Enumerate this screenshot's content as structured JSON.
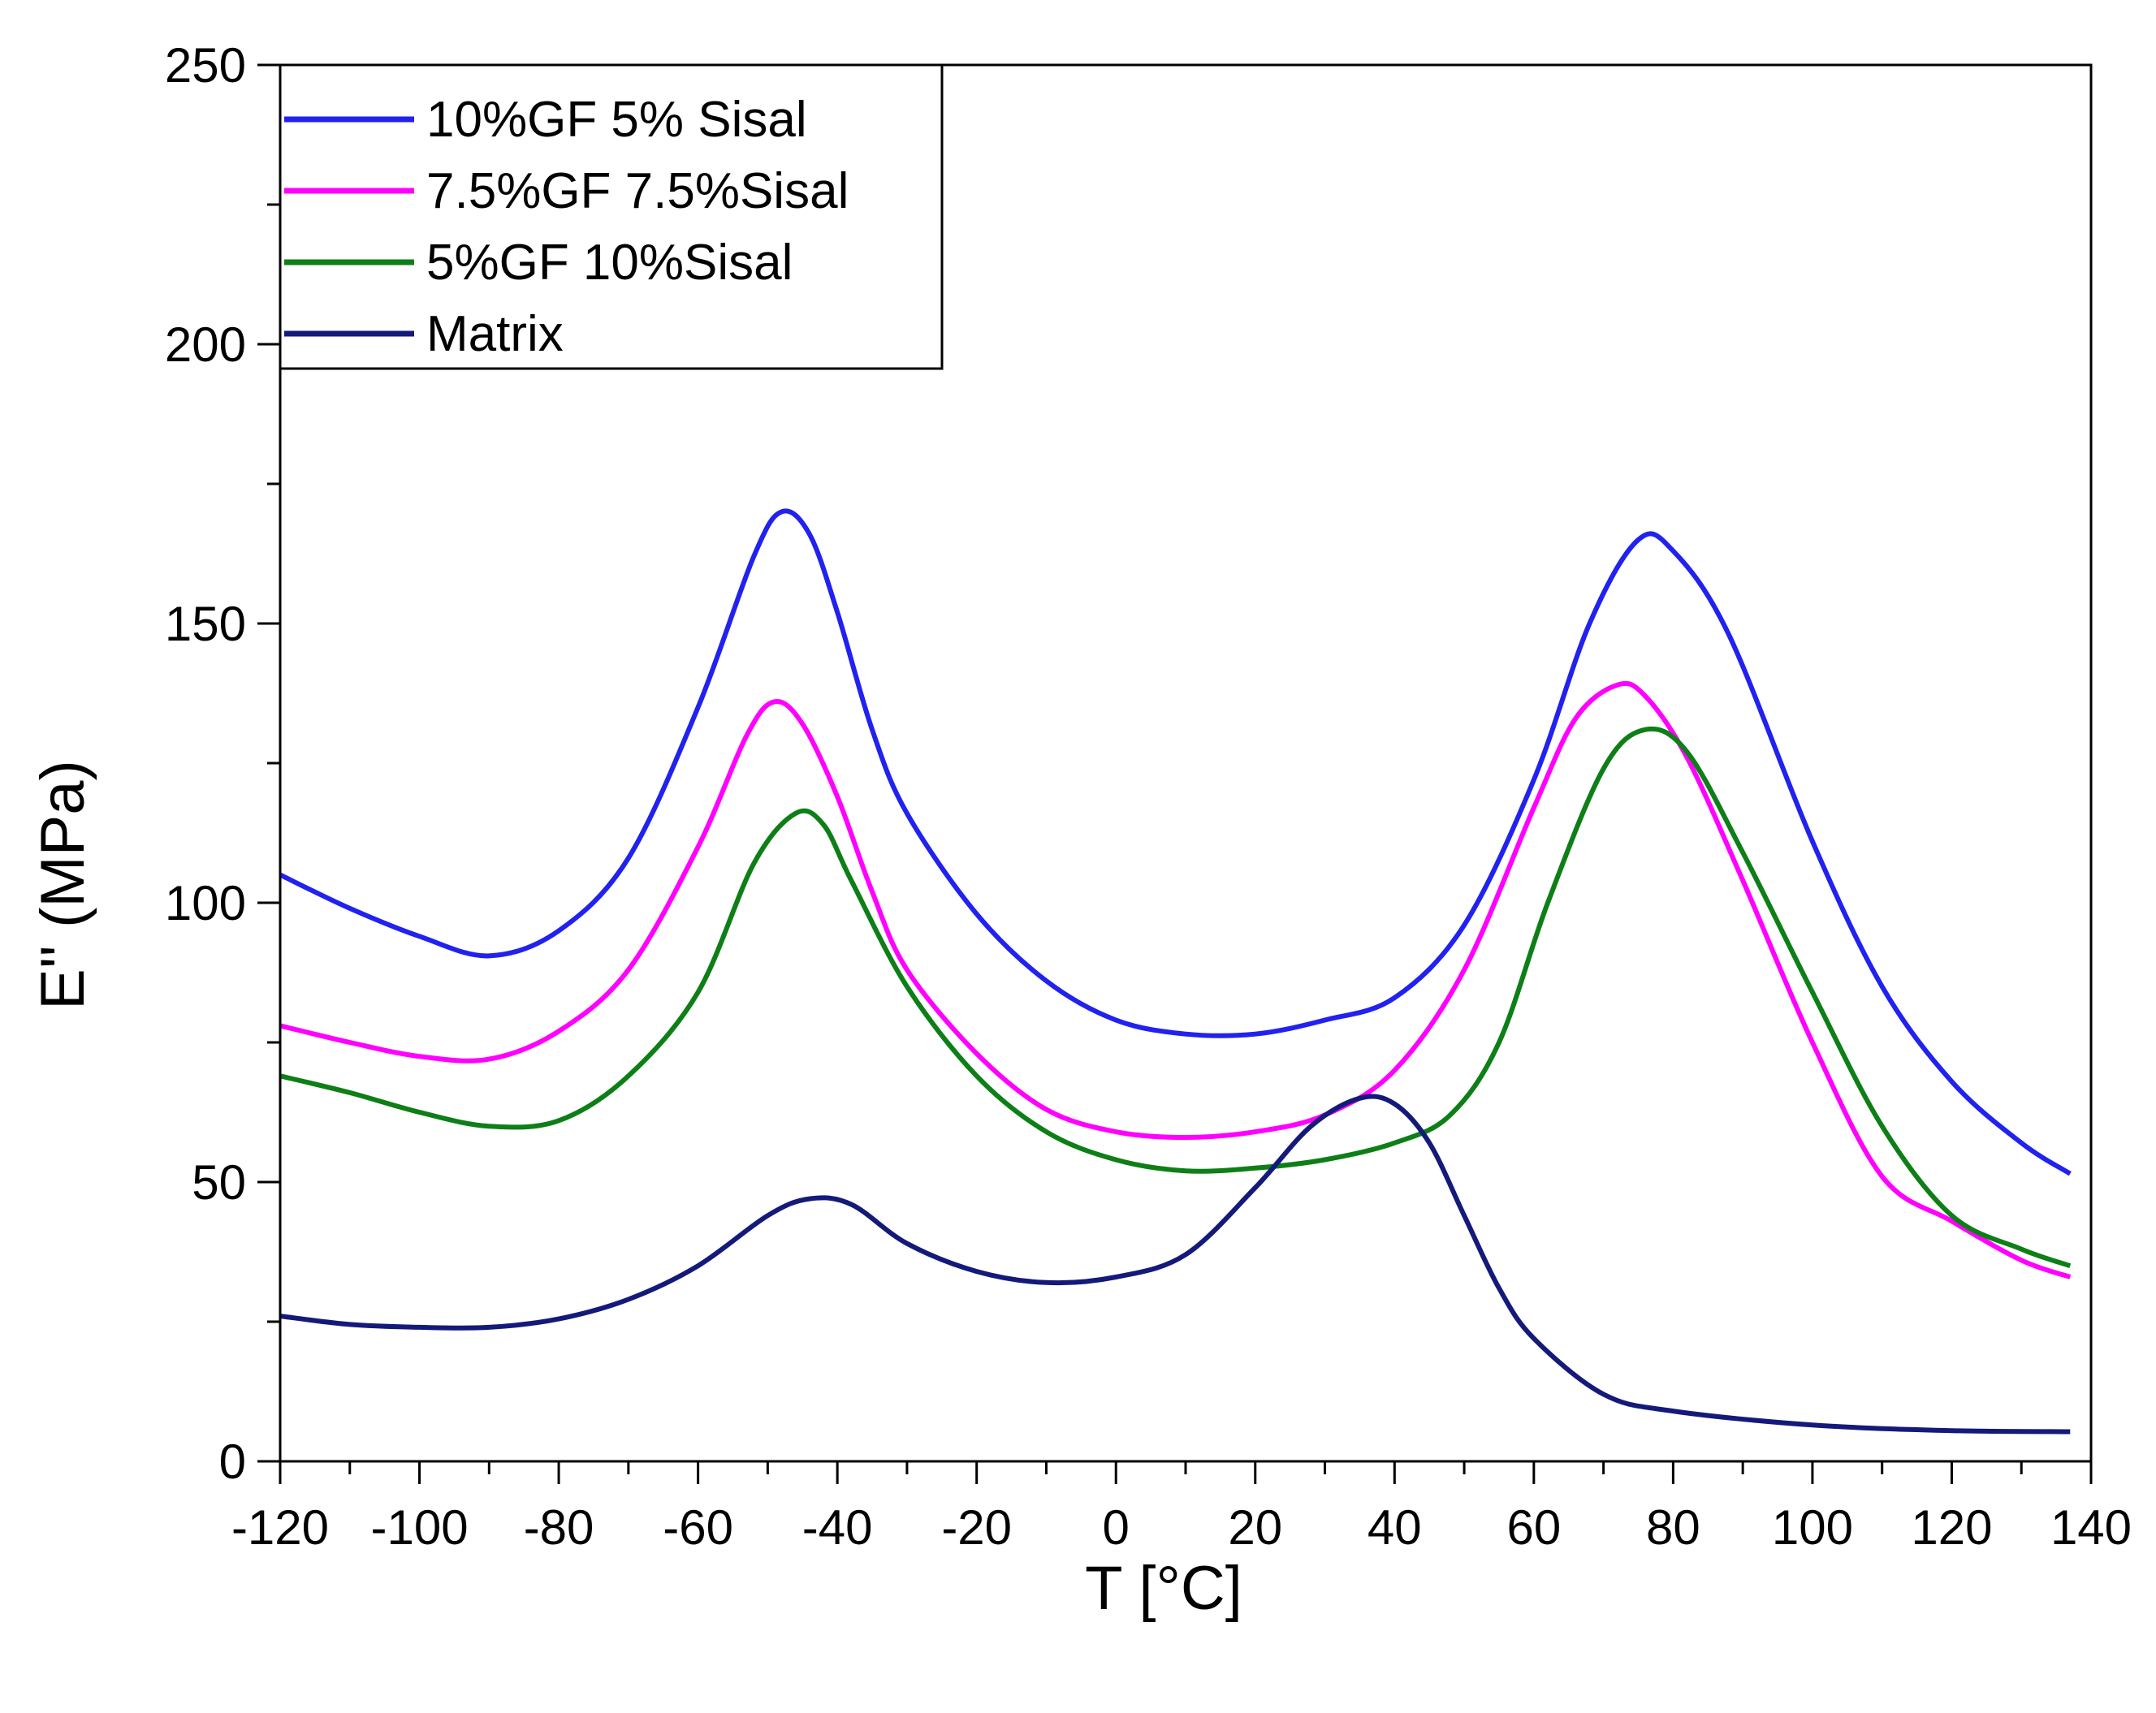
{
  "chart_data": {
    "type": "line",
    "title": "",
    "xlabel": "T [°C]",
    "ylabel": "E'' (MPa)",
    "xlim": [
      -120,
      140
    ],
    "ylim": [
      0,
      250
    ],
    "x_ticks": [
      -120,
      -100,
      -80,
      -60,
      -40,
      -20,
      0,
      20,
      40,
      60,
      80,
      100,
      120,
      140
    ],
    "y_ticks": [
      0,
      50,
      100,
      150,
      200,
      250
    ],
    "legend_position": "top-left",
    "series": [
      {
        "name": "10%GF 5% Sisal",
        "color": "#2121f0",
        "points": [
          [
            -120,
            105
          ],
          [
            -110,
            99
          ],
          [
            -100,
            94
          ],
          [
            -90,
            90.5
          ],
          [
            -80,
            95
          ],
          [
            -70,
            108
          ],
          [
            -60,
            135
          ],
          [
            -52,
            162
          ],
          [
            -48,
            170
          ],
          [
            -44,
            166
          ],
          [
            -40,
            152
          ],
          [
            -35,
            131
          ],
          [
            -30,
            116
          ],
          [
            -20,
            98
          ],
          [
            -10,
            86
          ],
          [
            0,
            79
          ],
          [
            10,
            76.5
          ],
          [
            20,
            76.5
          ],
          [
            30,
            79
          ],
          [
            40,
            83
          ],
          [
            50,
            96
          ],
          [
            60,
            122
          ],
          [
            68,
            150
          ],
          [
            75,
            165
          ],
          [
            80,
            163
          ],
          [
            88,
            148
          ],
          [
            100,
            111
          ],
          [
            110,
            85
          ],
          [
            120,
            68
          ],
          [
            130,
            57
          ],
          [
            137,
            51.5
          ]
        ]
      },
      {
        "name": "7.5%GF 7.5%Sisal",
        "color": "#ff00ff",
        "points": [
          [
            -120,
            78
          ],
          [
            -110,
            75
          ],
          [
            -100,
            72.5
          ],
          [
            -90,
            72
          ],
          [
            -80,
            77
          ],
          [
            -70,
            88
          ],
          [
            -60,
            110
          ],
          [
            -53,
            130
          ],
          [
            -49,
            136
          ],
          [
            -45,
            132
          ],
          [
            -40,
            119
          ],
          [
            -35,
            102
          ],
          [
            -30,
            88
          ],
          [
            -20,
            73
          ],
          [
            -10,
            63
          ],
          [
            0,
            59
          ],
          [
            10,
            58
          ],
          [
            20,
            59
          ],
          [
            30,
            62
          ],
          [
            40,
            70
          ],
          [
            50,
            88
          ],
          [
            60,
            117
          ],
          [
            66,
            133
          ],
          [
            72,
            139
          ],
          [
            76,
            137
          ],
          [
            82,
            126
          ],
          [
            90,
            104
          ],
          [
            100,
            75
          ],
          [
            110,
            51
          ],
          [
            120,
            43
          ],
          [
            130,
            36
          ],
          [
            137,
            33
          ]
        ]
      },
      {
        "name": "5%GF 10%Sisal",
        "color": "#0d7f16",
        "points": [
          [
            -120,
            69
          ],
          [
            -110,
            66
          ],
          [
            -100,
            62.5
          ],
          [
            -90,
            60
          ],
          [
            -80,
            61
          ],
          [
            -70,
            69
          ],
          [
            -60,
            84
          ],
          [
            -52,
            107
          ],
          [
            -46,
            116
          ],
          [
            -42,
            114
          ],
          [
            -38,
            104
          ],
          [
            -30,
            85
          ],
          [
            -20,
            69
          ],
          [
            -10,
            59
          ],
          [
            0,
            54
          ],
          [
            10,
            52
          ],
          [
            20,
            52.5
          ],
          [
            30,
            54
          ],
          [
            40,
            57
          ],
          [
            48,
            62
          ],
          [
            55,
            75
          ],
          [
            62,
            100
          ],
          [
            70,
            124
          ],
          [
            76,
            131
          ],
          [
            82,
            127
          ],
          [
            90,
            109
          ],
          [
            100,
            84
          ],
          [
            110,
            60
          ],
          [
            120,
            44
          ],
          [
            130,
            38
          ],
          [
            137,
            35
          ]
        ]
      },
      {
        "name": "Matrix",
        "color": "#141a7a",
        "points": [
          [
            -120,
            26
          ],
          [
            -110,
            24.5
          ],
          [
            -100,
            24
          ],
          [
            -90,
            24
          ],
          [
            -80,
            25.5
          ],
          [
            -70,
            29
          ],
          [
            -60,
            35
          ],
          [
            -50,
            44
          ],
          [
            -44,
            47
          ],
          [
            -38,
            46
          ],
          [
            -30,
            39
          ],
          [
            -20,
            34
          ],
          [
            -10,
            32
          ],
          [
            0,
            33
          ],
          [
            10,
            37
          ],
          [
            20,
            49
          ],
          [
            28,
            60
          ],
          [
            35,
            65
          ],
          [
            40,
            64
          ],
          [
            45,
            57
          ],
          [
            50,
            44
          ],
          [
            55,
            31
          ],
          [
            60,
            22
          ],
          [
            70,
            12
          ],
          [
            80,
            9
          ],
          [
            100,
            6.5
          ],
          [
            120,
            5.5
          ],
          [
            137,
            5.3
          ]
        ]
      }
    ]
  }
}
